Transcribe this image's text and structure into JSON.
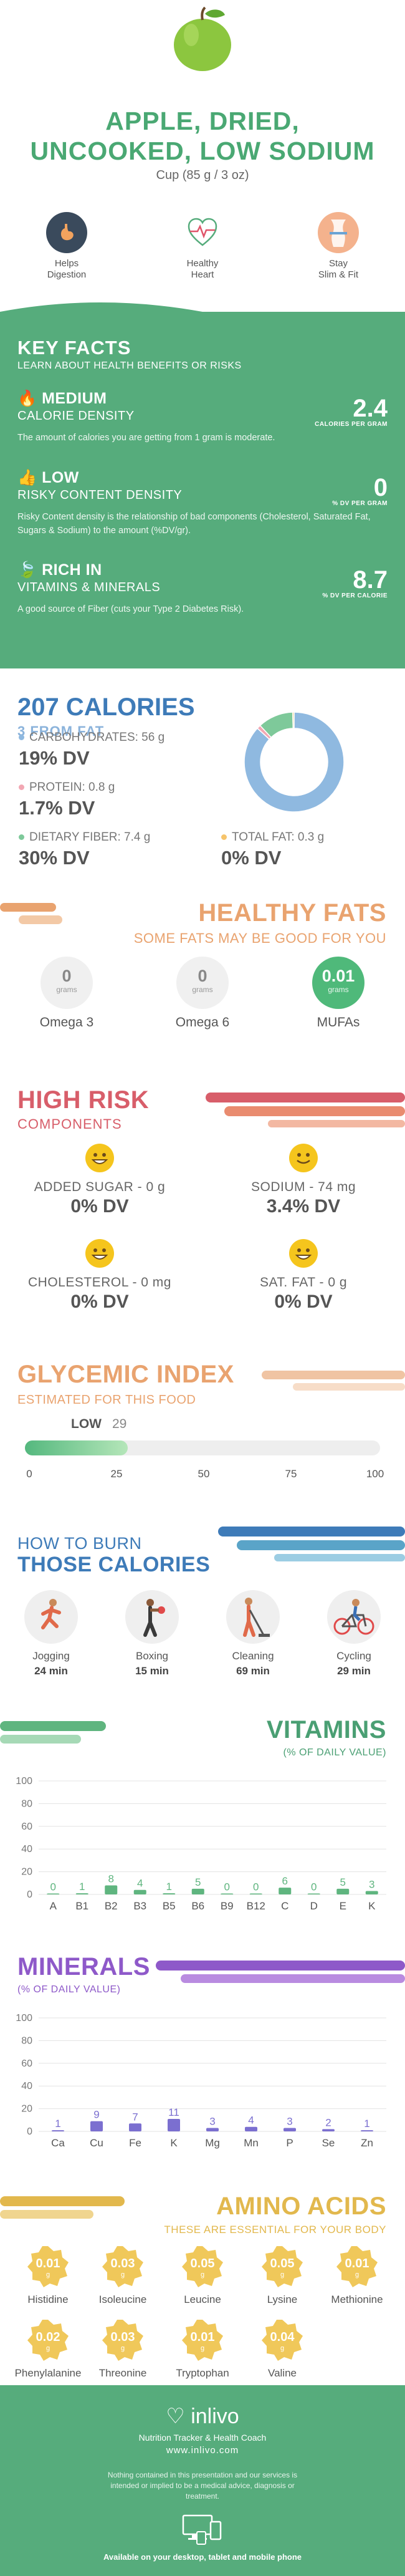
{
  "header": {
    "title_line1": "APPLE, DRIED,",
    "title_line2": "UNCOOKED, LOW SODIUM",
    "serving": "Cup (85 g / 3 oz)",
    "benefits": [
      {
        "line1": "Helps",
        "line2": "Digestion",
        "icon": "stomach-icon",
        "color": "#3a4a5c"
      },
      {
        "line1": "Healthy",
        "line2": "Heart",
        "icon": "heart-pulse-icon",
        "color": "#56ac7c"
      },
      {
        "line1": "Stay",
        "line2": "Slim & Fit",
        "icon": "waist-icon",
        "color": "#f08a5d"
      }
    ]
  },
  "key_facts": {
    "title": "KEY FACTS",
    "subtitle": "LEARN ABOUT HEALTH BENEFITS OR RISKS",
    "items": [
      {
        "level": "MEDIUM",
        "name": "CALORIE DENSITY",
        "value": "2.4",
        "unit": "CALORIES PER GRAM",
        "desc": "The amount of calories you are getting from 1 gram is moderate."
      },
      {
        "level": "LOW",
        "name": "RISKY CONTENT DENSITY",
        "value": "0",
        "unit": "% DV PER GRAM",
        "desc": "Risky Content density is the relationship of bad components (Cholesterol, Saturated Fat, Sugars & Sodium) to the amount (%DV/gr)."
      },
      {
        "level": "RICH  IN",
        "name": "VITAMINS & MINERALS",
        "value": "8.7",
        "unit": "% DV PER CALORIE",
        "desc": "A good source of Fiber (cuts your  Type 2 Diabetes Risk)."
      }
    ]
  },
  "calories": {
    "title": "207 CALORIES",
    "from_fat": "3 FROM FAT",
    "carbs_label": "CARBOHYDRATES: 56 g",
    "carbs_dv": "19% DV",
    "protein_label": "PROTEIN: 0.8 g",
    "protein_dv": "1.7% DV",
    "fiber_label": "DIETARY FIBER: 7.4 g",
    "fiber_dv": "30% DV",
    "fat_label": "TOTAL FAT: 0.3 g",
    "fat_dv": "0% DV",
    "colors": {
      "carbs": "#8fb9e0",
      "protein": "#f2a7b3",
      "fiber": "#7ec99a",
      "fat": "#f6c46b"
    }
  },
  "fats": {
    "title": "HEALTHY FATS",
    "subtitle": "SOME FATS MAY BE GOOD FOR YOU",
    "items": [
      {
        "value": "0",
        "unit": "grams",
        "name": "Omega 3"
      },
      {
        "value": "0",
        "unit": "grams",
        "name": "Omega 6"
      },
      {
        "value": "0.01",
        "unit": "grams",
        "name": "MUFAs"
      }
    ]
  },
  "risk": {
    "title": "HIGH RISK",
    "subtitle": "COMPONENTS",
    "items": [
      {
        "label": "ADDED SUGAR - 0 g",
        "dv": "0% DV"
      },
      {
        "label": "SODIUM - 74 mg",
        "dv": "3.4% DV"
      },
      {
        "label": "CHOLESTEROL - 0 mg",
        "dv": "0% DV"
      },
      {
        "label": "SAT. FAT - 0 g",
        "dv": "0% DV"
      }
    ]
  },
  "glycemic": {
    "title": "GLYCEMIC INDEX",
    "subtitle": "ESTIMATED FOR THIS FOOD",
    "level": "LOW",
    "value": 29,
    "value_text": "29",
    "ticks": [
      "0",
      "25",
      "50",
      "75",
      "100"
    ]
  },
  "burn": {
    "title1": "HOW TO BURN",
    "title2": "THOSE CALORIES",
    "activities": [
      {
        "name": "Jogging",
        "minutes": "24 min",
        "icon": "jogging-icon"
      },
      {
        "name": "Boxing",
        "minutes": "15 min",
        "icon": "boxing-icon"
      },
      {
        "name": "Cleaning",
        "minutes": "69 min",
        "icon": "cleaning-icon"
      },
      {
        "name": "Cycling",
        "minutes": "29 min",
        "icon": "cycling-icon"
      }
    ]
  },
  "vitamins": {
    "title": "VITAMINS",
    "subtitle": "(% OF DAILY VALUE)",
    "color": "#5fb57f"
  },
  "minerals": {
    "title": "MINERALS",
    "subtitle": "(% OF DAILY VALUE)",
    "color": "#7b6fd0"
  },
  "chart_data": [
    {
      "type": "pie",
      "categories": [
        "Carbohydrates",
        "Protein",
        "Dietary Fiber",
        "Total Fat"
      ],
      "values": [
        56,
        0.8,
        7.4,
        0.3
      ]
    },
    {
      "type": "bar",
      "title": "VITAMINS",
      "ylabel": "(% OF DAILY VALUE)",
      "categories": [
        "A",
        "B1",
        "B2",
        "B3",
        "B5",
        "B6",
        "B9",
        "B12",
        "C",
        "D",
        "E",
        "K"
      ],
      "values": [
        0,
        1,
        8,
        4,
        1,
        5,
        0,
        0,
        6,
        0,
        5,
        3
      ],
      "ylim": [
        0,
        100
      ],
      "yticks": [
        "0",
        "20",
        "40",
        "60",
        "80",
        "100"
      ]
    },
    {
      "type": "bar",
      "title": "MINERALS",
      "ylabel": "(% OF DAILY VALUE)",
      "categories": [
        "Ca",
        "Cu",
        "Fe",
        "K",
        "Mg",
        "Mn",
        "P",
        "Se",
        "Zn"
      ],
      "values": [
        1,
        9,
        7,
        11,
        3,
        4,
        3,
        2,
        1
      ],
      "ylim": [
        0,
        100
      ],
      "yticks": [
        "0",
        "20",
        "40",
        "60",
        "80",
        "100"
      ]
    }
  ],
  "amino": {
    "title": "AMINO ACIDS",
    "subtitle": "THESE ARE ESSENTIAL FOR YOUR BODY",
    "items": [
      {
        "value": "0.01",
        "unit": "g",
        "name": "Histidine"
      },
      {
        "value": "0.03",
        "unit": "g",
        "name": "Isoleucine"
      },
      {
        "value": "0.05",
        "unit": "g",
        "name": "Leucine"
      },
      {
        "value": "0.05",
        "unit": "g",
        "name": "Lysine"
      },
      {
        "value": "0.01",
        "unit": "g",
        "name": "Methionine"
      },
      {
        "value": "0.02",
        "unit": "g",
        "name": "Phenylalanine"
      },
      {
        "value": "0.03",
        "unit": "g",
        "name": "Threonine"
      },
      {
        "value": "0.01",
        "unit": "g",
        "name": "Tryptophan"
      },
      {
        "value": "0.04",
        "unit": "g",
        "name": "Valine"
      }
    ]
  },
  "footer": {
    "logo": "inlivo",
    "tagline": "Nutrition Tracker & Health Coach",
    "url": "www.inlivo.com",
    "disclaimer": "Nothing contained in this presentation and our services is intended or implied to be a medical advice, diagnosis or treatment.",
    "available": "Available on your desktop, tablet and mobile phone"
  }
}
